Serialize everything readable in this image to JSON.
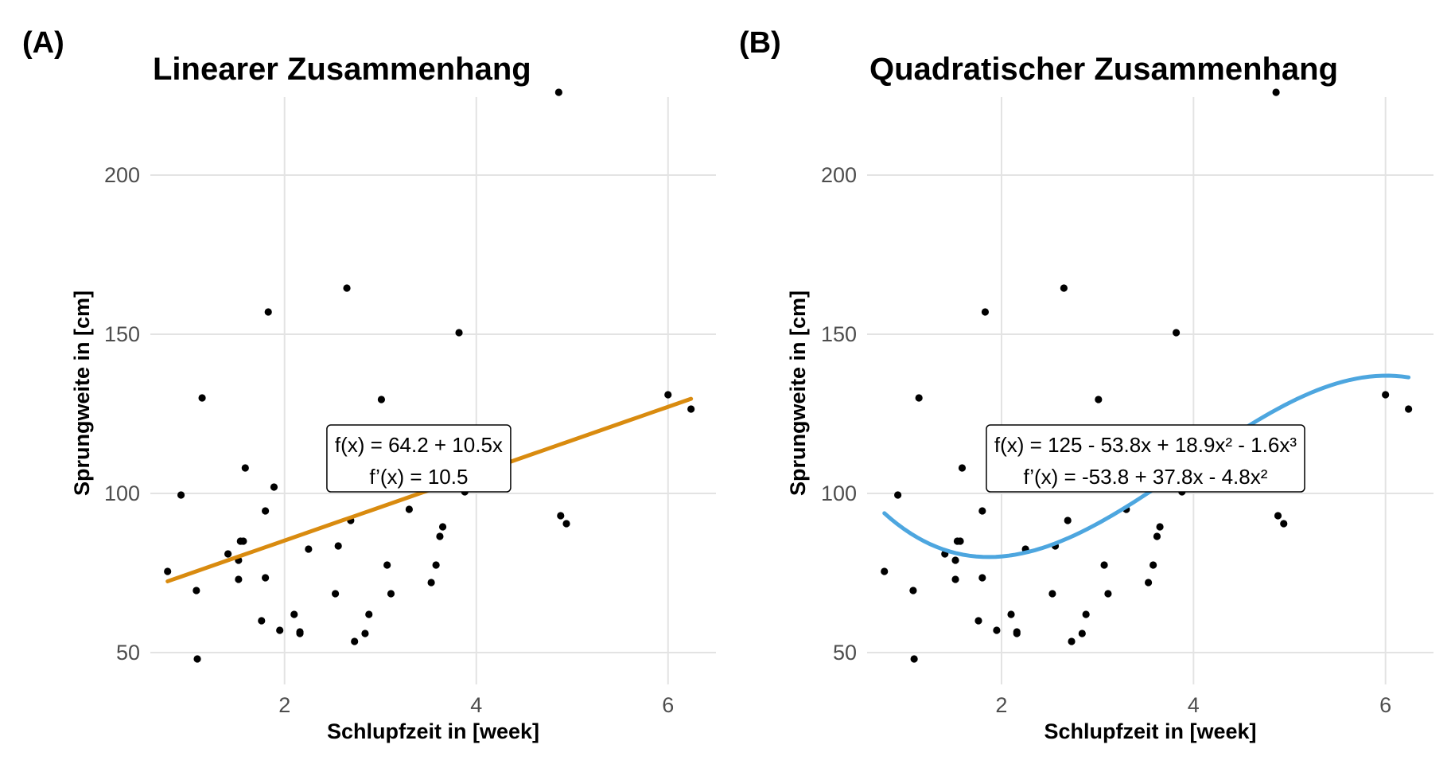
{
  "chart_data": [
    {
      "type": "scatter",
      "tag": "(A)",
      "title": "Linearer Zusammenhang",
      "xlabel": "Schlupfzeit in [week]",
      "ylabel": "Sprungweite in [cm]",
      "xlim": [
        0.6,
        6.5
      ],
      "ylim": [
        40,
        228
      ],
      "xticks": [
        2,
        4,
        6
      ],
      "yticks": [
        50,
        100,
        150,
        200
      ],
      "grid": true,
      "points": [
        [
          0.78,
          75.5
        ],
        [
          0.92,
          99.5
        ],
        [
          1.08,
          69.5
        ],
        [
          1.09,
          48
        ],
        [
          1.14,
          130
        ],
        [
          1.41,
          81
        ],
        [
          1.52,
          73
        ],
        [
          1.52,
          79
        ],
        [
          1.54,
          85
        ],
        [
          1.57,
          85
        ],
        [
          1.59,
          108
        ],
        [
          1.76,
          60
        ],
        [
          1.8,
          94.5
        ],
        [
          1.8,
          73.5
        ],
        [
          1.83,
          157
        ],
        [
          1.89,
          102
        ],
        [
          1.95,
          57
        ],
        [
          2.1,
          62
        ],
        [
          2.16,
          56.5
        ],
        [
          2.16,
          56
        ],
        [
          2.25,
          82.5
        ],
        [
          2.53,
          68.5
        ],
        [
          2.56,
          83.5
        ],
        [
          2.65,
          164.5
        ],
        [
          2.69,
          91.5
        ],
        [
          2.73,
          53.5
        ],
        [
          2.84,
          56
        ],
        [
          2.88,
          62
        ],
        [
          3.01,
          129.5
        ],
        [
          3.07,
          77.5
        ],
        [
          3.11,
          68.5
        ],
        [
          3.3,
          95
        ],
        [
          3.53,
          72
        ],
        [
          3.58,
          77.5
        ],
        [
          3.62,
          86.5
        ],
        [
          3.65,
          89.5
        ],
        [
          3.82,
          150.5
        ],
        [
          3.88,
          100.5
        ],
        [
          4.86,
          226
        ],
        [
          4.88,
          93
        ],
        [
          4.94,
          90.5
        ],
        [
          6.0,
          131
        ],
        [
          6.24,
          126.5
        ]
      ],
      "fit": {
        "type": "linear",
        "color": "#D98B0F",
        "coefficients": [
          64.2,
          10.5
        ],
        "x_range": [
          0.78,
          6.24
        ],
        "label_lines": [
          "f(x) = 64.2 + 10.5x",
          "f’(x) = 10.5"
        ],
        "label_at": [
          3.4,
          111
        ]
      }
    },
    {
      "type": "scatter",
      "tag": "(B)",
      "title": "Quadratischer Zusammenhang",
      "xlabel": "Schlupfzeit in [week]",
      "ylabel": "Sprungweite in [cm]",
      "xlim": [
        0.6,
        6.5
      ],
      "ylim": [
        40,
        228
      ],
      "xticks": [
        2,
        4,
        6
      ],
      "yticks": [
        50,
        100,
        150,
        200
      ],
      "grid": true,
      "points": [
        [
          0.78,
          75.5
        ],
        [
          0.92,
          99.5
        ],
        [
          1.08,
          69.5
        ],
        [
          1.09,
          48
        ],
        [
          1.14,
          130
        ],
        [
          1.41,
          81
        ],
        [
          1.52,
          73
        ],
        [
          1.52,
          79
        ],
        [
          1.54,
          85
        ],
        [
          1.57,
          85
        ],
        [
          1.59,
          108
        ],
        [
          1.76,
          60
        ],
        [
          1.8,
          94.5
        ],
        [
          1.8,
          73.5
        ],
        [
          1.83,
          157
        ],
        [
          1.89,
          102
        ],
        [
          1.95,
          57
        ],
        [
          2.1,
          62
        ],
        [
          2.16,
          56.5
        ],
        [
          2.16,
          56
        ],
        [
          2.25,
          82.5
        ],
        [
          2.53,
          68.5
        ],
        [
          2.56,
          83.5
        ],
        [
          2.65,
          164.5
        ],
        [
          2.69,
          91.5
        ],
        [
          2.73,
          53.5
        ],
        [
          2.84,
          56
        ],
        [
          2.88,
          62
        ],
        [
          3.01,
          129.5
        ],
        [
          3.07,
          77.5
        ],
        [
          3.11,
          68.5
        ],
        [
          3.3,
          95
        ],
        [
          3.53,
          72
        ],
        [
          3.58,
          77.5
        ],
        [
          3.62,
          86.5
        ],
        [
          3.65,
          89.5
        ],
        [
          3.82,
          150.5
        ],
        [
          3.88,
          100.5
        ],
        [
          4.86,
          226
        ],
        [
          4.88,
          93
        ],
        [
          4.94,
          90.5
        ],
        [
          6.0,
          131
        ],
        [
          6.24,
          126.5
        ]
      ],
      "fit": {
        "type": "cubic",
        "color": "#4DA6DF",
        "coefficients": [
          125,
          -53.8,
          18.9,
          -1.6
        ],
        "x_range": [
          0.78,
          6.24
        ],
        "label_lines": [
          "f(x) = 125 - 53.8x + 18.9x² - 1.6x³",
          "f’(x) = -53.8 + 37.8x - 4.8x²"
        ],
        "label_at": [
          3.5,
          111
        ]
      }
    }
  ]
}
